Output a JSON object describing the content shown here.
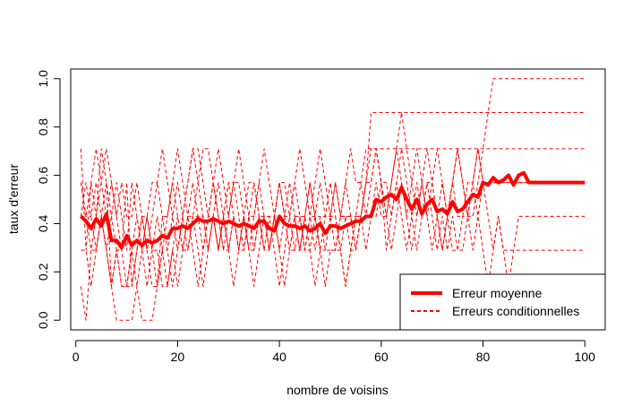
{
  "chart_data": {
    "type": "line",
    "title": "",
    "xlabel": "nombre de voisins",
    "ylabel": "taux d'erreur",
    "xlim": [
      -1,
      104
    ],
    "ylim": [
      -0.04,
      1.04
    ],
    "xticks": [
      0,
      20,
      40,
      60,
      80,
      100
    ],
    "yticks": [
      0.0,
      0.2,
      0.4,
      0.6,
      0.8,
      1.0
    ],
    "xtick_labels": [
      "0",
      "20",
      "40",
      "60",
      "80",
      "100"
    ],
    "ytick_labels": [
      "0.0",
      "0.2",
      "0.4",
      "0.6",
      "0.8",
      "1.0"
    ],
    "grid": false,
    "legend_position": "bottom-right",
    "color": "#ff0000",
    "x": [
      1,
      2,
      3,
      4,
      5,
      6,
      7,
      8,
      9,
      10,
      11,
      12,
      13,
      14,
      15,
      16,
      17,
      18,
      19,
      20,
      21,
      22,
      23,
      24,
      25,
      26,
      27,
      28,
      29,
      30,
      31,
      32,
      33,
      34,
      35,
      36,
      37,
      38,
      39,
      40,
      41,
      42,
      43,
      44,
      45,
      46,
      47,
      48,
      49,
      50,
      51,
      52,
      53,
      54,
      55,
      56,
      57,
      58,
      59,
      60,
      61,
      62,
      63,
      64,
      65,
      66,
      67,
      68,
      69,
      70,
      71,
      72,
      73,
      74,
      75,
      76,
      77,
      78,
      79,
      80,
      81,
      82,
      83,
      84,
      85,
      86,
      87,
      88,
      89,
      90,
      91,
      92,
      93,
      94,
      95,
      96,
      97,
      98,
      99,
      100
    ],
    "series": [
      {
        "name": "Erreur moyenne",
        "style": "solid-thick",
        "values": [
          0.43,
          0.41,
          0.38,
          0.42,
          0.39,
          0.44,
          0.33,
          0.33,
          0.3,
          0.35,
          0.31,
          0.33,
          0.31,
          0.33,
          0.32,
          0.33,
          0.35,
          0.34,
          0.38,
          0.38,
          0.39,
          0.38,
          0.4,
          0.42,
          0.41,
          0.41,
          0.42,
          0.41,
          0.4,
          0.41,
          0.4,
          0.39,
          0.4,
          0.39,
          0.38,
          0.41,
          0.41,
          0.38,
          0.37,
          0.43,
          0.4,
          0.39,
          0.39,
          0.38,
          0.39,
          0.37,
          0.38,
          0.4,
          0.36,
          0.39,
          0.39,
          0.38,
          0.39,
          0.4,
          0.41,
          0.41,
          0.43,
          0.43,
          0.5,
          0.49,
          0.51,
          0.52,
          0.5,
          0.55,
          0.5,
          0.46,
          0.5,
          0.44,
          0.48,
          0.5,
          0.45,
          0.46,
          0.44,
          0.49,
          0.45,
          0.46,
          0.49,
          0.52,
          0.51,
          0.57,
          0.56,
          0.59,
          0.57,
          0.58,
          0.6,
          0.56,
          0.6,
          0.61,
          0.57,
          0.57,
          0.57,
          0.57,
          0.57,
          0.57,
          0.57,
          0.57,
          0.57,
          0.57,
          0.57,
          0.57
        ]
      },
      {
        "name": "Erreurs conditionnelles",
        "style": "dashed",
        "values": [
          0.71,
          0.29,
          0.57,
          0.43,
          0.71,
          0.57,
          0.14,
          0.29,
          0.29,
          0.57,
          0.14,
          0.29,
          0.43,
          0.29,
          0.14,
          0.14,
          0.43,
          0.43,
          0.57,
          0.43,
          0.29,
          0.43,
          0.57,
          0.43,
          0.43,
          0.29,
          0.43,
          0.57,
          0.43,
          0.57,
          0.57,
          0.43,
          0.29,
          0.43,
          0.57,
          0.43,
          0.43,
          0.29,
          0.43,
          0.57,
          0.43,
          0.43,
          0.57,
          0.43,
          0.43,
          0.57,
          0.43,
          0.57,
          0.43,
          0.43,
          0.57,
          0.43,
          0.43,
          0.29,
          0.43,
          0.57,
          0.71,
          0.71,
          0.71,
          0.71,
          0.71,
          0.71,
          0.71,
          0.71,
          0.71,
          0.71,
          0.71,
          0.71,
          0.71,
          0.71,
          0.71,
          0.71,
          0.71,
          0.71,
          0.71,
          0.71,
          0.71,
          0.71,
          0.71,
          0.71,
          0.71,
          0.71,
          0.71,
          0.71,
          0.71,
          0.71,
          0.71,
          0.71,
          0.71,
          0.71,
          0.71,
          0.71,
          0.71,
          0.71,
          0.71,
          0.71,
          0.71,
          0.71,
          0.71,
          0.71
        ]
      },
      {
        "name": "Erreurs conditionnelles",
        "style": "dashed",
        "values": [
          0.14,
          0.0,
          0.29,
          0.43,
          0.57,
          0.71,
          0.57,
          0.43,
          0.29,
          0.14,
          0.14,
          0.29,
          0.43,
          0.29,
          0.43,
          0.57,
          0.43,
          0.29,
          0.14,
          0.29,
          0.43,
          0.57,
          0.71,
          0.57,
          0.43,
          0.29,
          0.43,
          0.29,
          0.43,
          0.29,
          0.43,
          0.29,
          0.29,
          0.43,
          0.29,
          0.43,
          0.43,
          0.29,
          0.43,
          0.43,
          0.43,
          0.29,
          0.43,
          0.43,
          0.29,
          0.43,
          0.43,
          0.43,
          0.29,
          0.29,
          0.29,
          0.43,
          0.43,
          0.43,
          0.43,
          0.43,
          0.57,
          0.86,
          0.86,
          0.86,
          0.86,
          0.86,
          0.86,
          0.86,
          0.86,
          0.86,
          0.86,
          0.86,
          0.86,
          0.86,
          0.86,
          0.86,
          0.86,
          0.86,
          0.86,
          0.86,
          0.86,
          0.86,
          0.86,
          0.86,
          0.86,
          0.86,
          0.86,
          0.86,
          0.86,
          0.86,
          0.86,
          0.86,
          0.86,
          0.86,
          0.86,
          0.86,
          0.86,
          0.86,
          0.86,
          0.86,
          0.86,
          0.86,
          0.86,
          0.86
        ]
      },
      {
        "name": "Erreurs conditionnelles",
        "style": "dashed",
        "values": [
          0.43,
          0.57,
          0.43,
          0.29,
          0.43,
          0.29,
          0.14,
          0.0,
          0.0,
          0.0,
          0.0,
          0.14,
          0.0,
          0.0,
          0.0,
          0.14,
          0.29,
          0.43,
          0.57,
          0.71,
          0.57,
          0.43,
          0.43,
          0.57,
          0.71,
          0.71,
          0.57,
          0.43,
          0.29,
          0.43,
          0.57,
          0.57,
          0.43,
          0.29,
          0.14,
          0.29,
          0.43,
          0.43,
          0.29,
          0.14,
          0.29,
          0.43,
          0.29,
          0.29,
          0.43,
          0.29,
          0.14,
          0.29,
          0.43,
          0.57,
          0.43,
          0.29,
          0.14,
          0.29,
          0.43,
          0.43,
          0.57,
          0.57,
          0.71,
          0.57,
          0.43,
          0.57,
          0.71,
          0.86,
          0.71,
          0.57,
          0.43,
          0.57,
          0.71,
          0.57,
          0.43,
          0.29,
          0.43,
          0.57,
          0.71,
          0.57,
          0.43,
          0.57,
          0.71,
          0.57,
          0.57,
          0.57,
          0.57,
          0.57,
          0.57,
          0.57,
          0.57,
          0.57,
          0.57,
          0.57,
          0.57,
          0.57,
          0.57,
          0.57,
          0.57,
          0.57,
          0.57,
          0.57,
          0.57,
          0.57
        ]
      },
      {
        "name": "Erreurs conditionnelles",
        "style": "dashed",
        "values": [
          0.57,
          0.43,
          0.29,
          0.29,
          0.43,
          0.57,
          0.43,
          0.29,
          0.14,
          0.14,
          0.29,
          0.43,
          0.29,
          0.14,
          0.29,
          0.43,
          0.29,
          0.29,
          0.43,
          0.57,
          0.43,
          0.29,
          0.43,
          0.43,
          0.29,
          0.43,
          0.57,
          0.43,
          0.29,
          0.29,
          0.43,
          0.29,
          0.43,
          0.57,
          0.57,
          0.43,
          0.29,
          0.43,
          0.43,
          0.29,
          0.43,
          0.29,
          0.43,
          0.29,
          0.29,
          0.43,
          0.29,
          0.43,
          0.43,
          0.43,
          0.43,
          0.29,
          0.43,
          0.43,
          0.29,
          0.43,
          0.43,
          0.57,
          0.71,
          0.57,
          0.43,
          0.29,
          0.43,
          0.57,
          0.43,
          0.29,
          0.43,
          0.57,
          0.43,
          0.29,
          0.43,
          0.29,
          0.43,
          0.29,
          0.29,
          0.43,
          0.43,
          0.43,
          0.57,
          0.71,
          0.86,
          1.0,
          1.0,
          1.0,
          1.0,
          1.0,
          1.0,
          1.0,
          1.0,
          1.0,
          1.0,
          1.0,
          1.0,
          1.0,
          1.0,
          1.0,
          1.0,
          1.0,
          1.0,
          1.0
        ]
      },
      {
        "name": "Erreurs conditionnelles",
        "style": "dashed",
        "values": [
          0.29,
          0.29,
          0.14,
          0.29,
          0.43,
          0.29,
          0.43,
          0.57,
          0.43,
          0.29,
          0.57,
          0.43,
          0.29,
          0.43,
          0.29,
          0.29,
          0.14,
          0.14,
          0.29,
          0.43,
          0.29,
          0.29,
          0.43,
          0.29,
          0.14,
          0.29,
          0.43,
          0.29,
          0.43,
          0.29,
          0.14,
          0.29,
          0.43,
          0.29,
          0.29,
          0.43,
          0.29,
          0.29,
          0.43,
          0.29,
          0.14,
          0.29,
          0.29,
          0.43,
          0.29,
          0.29,
          0.43,
          0.29,
          0.14,
          0.29,
          0.29,
          0.29,
          0.14,
          0.29,
          0.29,
          0.43,
          0.29,
          0.43,
          0.43,
          0.57,
          0.29,
          0.43,
          0.57,
          0.43,
          0.29,
          0.43,
          0.29,
          0.43,
          0.57,
          0.43,
          0.29,
          0.43,
          0.29,
          0.43,
          0.29,
          0.29,
          0.43,
          0.57,
          0.43,
          0.29,
          0.14,
          0.29,
          0.43,
          0.29,
          0.14,
          0.29,
          0.43,
          0.43,
          0.43,
          0.43,
          0.43,
          0.43,
          0.43,
          0.43,
          0.43,
          0.43,
          0.43,
          0.43,
          0.43,
          0.43
        ]
      },
      {
        "name": "Erreurs conditionnelles",
        "style": "dashed",
        "values": [
          0.43,
          0.43,
          0.57,
          0.71,
          0.57,
          0.43,
          0.57,
          0.43,
          0.57,
          0.43,
          0.43,
          0.57,
          0.43,
          0.43,
          0.57,
          0.57,
          0.71,
          0.57,
          0.43,
          0.29,
          0.43,
          0.57,
          0.71,
          0.71,
          0.57,
          0.43,
          0.57,
          0.71,
          0.57,
          0.43,
          0.57,
          0.71,
          0.57,
          0.43,
          0.43,
          0.57,
          0.71,
          0.57,
          0.43,
          0.57,
          0.57,
          0.43,
          0.57,
          0.71,
          0.57,
          0.43,
          0.57,
          0.71,
          0.57,
          0.43,
          0.57,
          0.43,
          0.57,
          0.71,
          0.57,
          0.57,
          0.43,
          0.43,
          0.57,
          0.43,
          0.43,
          0.57,
          0.71,
          0.57,
          0.43,
          0.57,
          0.71,
          0.57,
          0.43,
          0.57,
          0.71,
          0.57,
          0.43,
          0.57,
          0.71,
          0.57,
          0.43,
          0.29,
          0.43,
          0.57,
          0.43,
          0.29,
          0.43,
          0.29,
          0.29,
          0.29,
          0.29,
          0.29,
          0.29,
          0.29,
          0.29,
          0.29,
          0.29,
          0.29,
          0.29,
          0.29,
          0.29,
          0.29,
          0.29,
          0.29
        ]
      },
      {
        "name": "Erreurs conditionnelles",
        "style": "dashed",
        "values": [
          0.57,
          0.43,
          0.43,
          0.57,
          0.43,
          0.29,
          0.14,
          0.29,
          0.14,
          0.14,
          0.29,
          0.14,
          0.29,
          0.43,
          0.29,
          0.14,
          0.29,
          0.14,
          0.29,
          0.14,
          0.29,
          0.43,
          0.29,
          0.14,
          0.29,
          0.43,
          0.43,
          0.29,
          0.43,
          0.57,
          0.43,
          0.29,
          0.43,
          0.29,
          0.43,
          0.57,
          0.43,
          0.29,
          0.43,
          0.57,
          0.43,
          0.57,
          0.43,
          0.29,
          0.43,
          0.57,
          0.43,
          0.29,
          0.29,
          0.43,
          0.29,
          0.43,
          0.57,
          0.43,
          0.29,
          0.43,
          0.57,
          0.71,
          0.71,
          0.57,
          0.57,
          0.43,
          0.57,
          0.71,
          0.57,
          0.43,
          0.57,
          0.43,
          0.57,
          0.57,
          0.43,
          0.57,
          0.43,
          0.57,
          0.43,
          0.43,
          0.57,
          0.57,
          0.71,
          0.57,
          0.57,
          0.57,
          0.57,
          0.57,
          0.57,
          0.57,
          0.57,
          0.57,
          0.57,
          0.57,
          0.57,
          0.57,
          0.57,
          0.57,
          0.57,
          0.57,
          0.57,
          0.57,
          0.57,
          0.57
        ]
      }
    ]
  }
}
